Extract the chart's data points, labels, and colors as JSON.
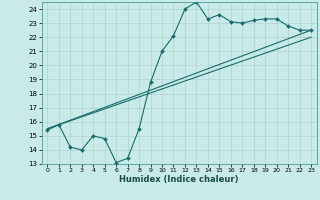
{
  "title": "",
  "xlabel": "Humidex (Indice chaleur)",
  "ylabel": "",
  "bg_color": "#c8eae8",
  "grid_color": "#aed4d2",
  "line_color": "#1a6b6b",
  "xlim": [
    -0.5,
    23.5
  ],
  "ylim": [
    13,
    24.5
  ],
  "yticks": [
    13,
    14,
    15,
    16,
    17,
    18,
    19,
    20,
    21,
    22,
    23,
    24
  ],
  "xticks": [
    0,
    1,
    2,
    3,
    4,
    5,
    6,
    7,
    8,
    9,
    10,
    11,
    12,
    13,
    14,
    15,
    16,
    17,
    18,
    19,
    20,
    21,
    22,
    23
  ],
  "series1_x": [
    0,
    1,
    2,
    3,
    4,
    5,
    6,
    7,
    8,
    9,
    10,
    11,
    12,
    13,
    14,
    15,
    16,
    17,
    18,
    19,
    20,
    21,
    22,
    23
  ],
  "series1_y": [
    15.4,
    15.8,
    14.2,
    14.0,
    15.0,
    14.8,
    13.1,
    13.4,
    15.5,
    18.8,
    21.0,
    22.1,
    24.0,
    24.5,
    23.3,
    23.6,
    23.1,
    23.0,
    23.2,
    23.3,
    23.3,
    22.8,
    22.5,
    22.5
  ],
  "series2_x": [
    0,
    23
  ],
  "series2_y": [
    15.5,
    22.5
  ],
  "series3_x": [
    0,
    23
  ],
  "series3_y": [
    15.5,
    22.0
  ]
}
